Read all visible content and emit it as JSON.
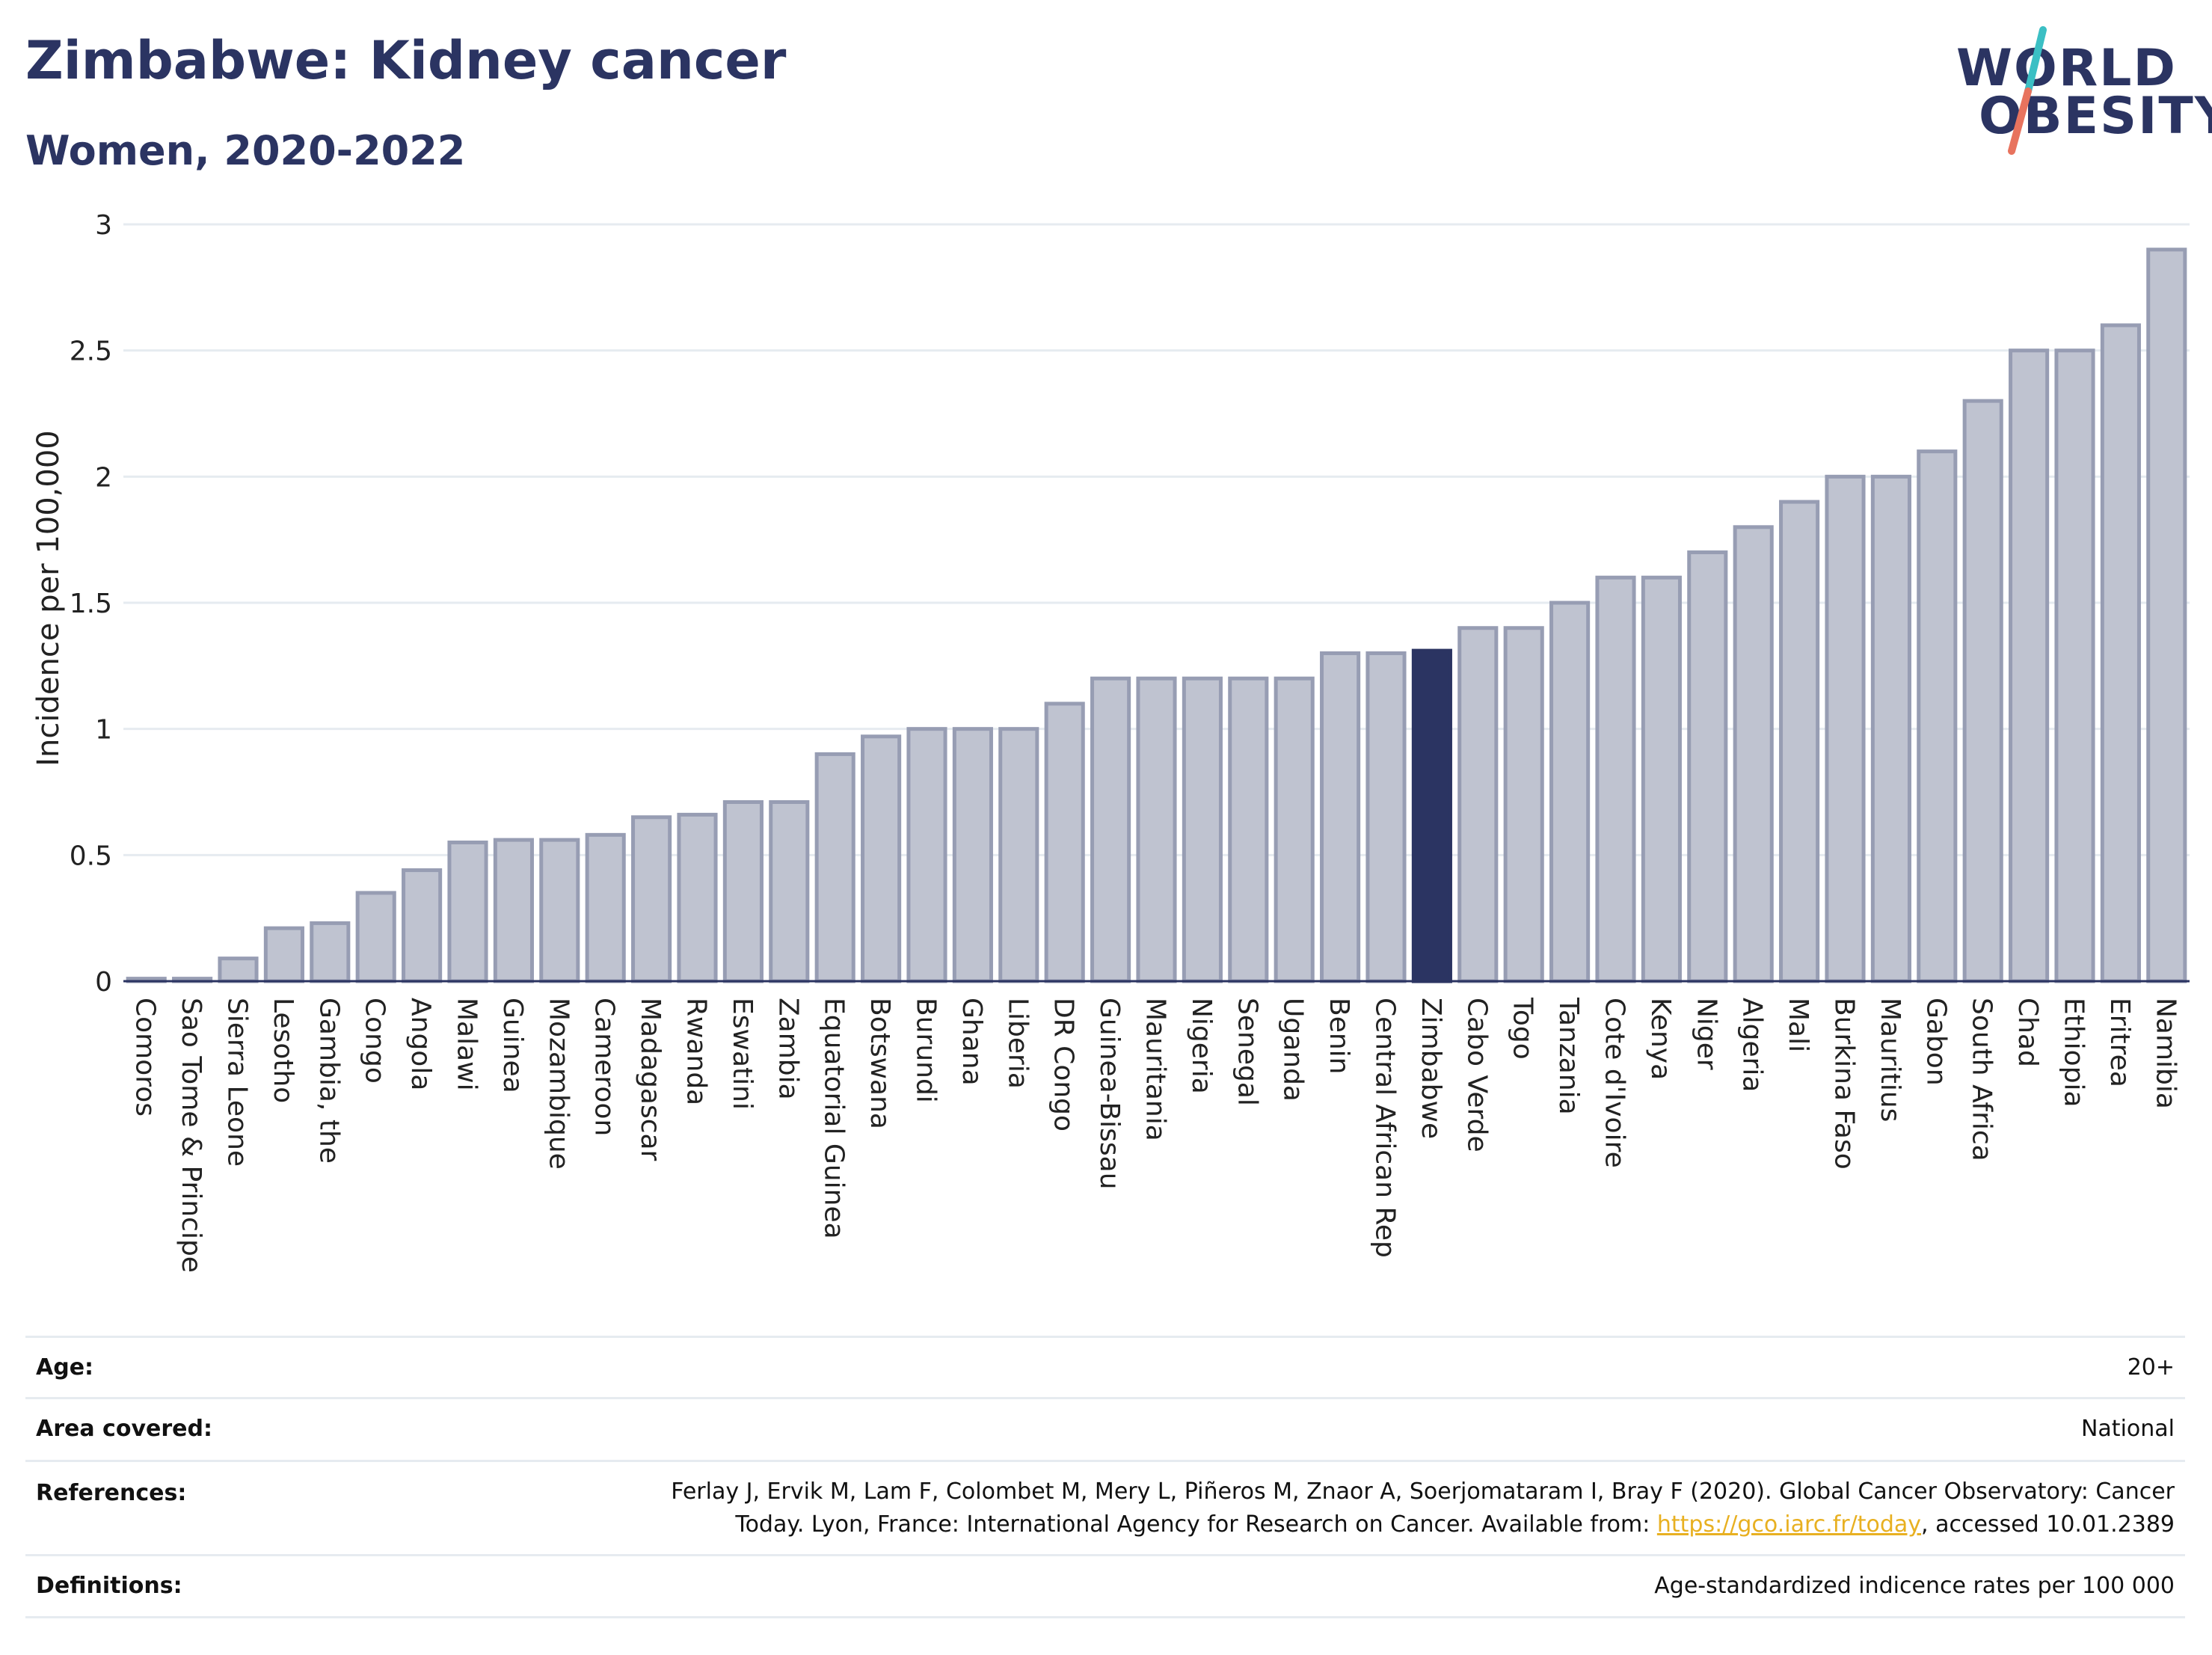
{
  "header": {
    "title": "Zimbabwe: Kidney cancer",
    "subtitle": "Women, 2020-2022"
  },
  "logo": {
    "line1": "WORLD",
    "line2": "OBESITY",
    "slash_colors": [
      "#3bbfc4",
      "#e8735e"
    ]
  },
  "colors": {
    "bar": "#bfc3d0",
    "bar_stroke": "#979db3",
    "highlight": "#2b3462",
    "grid": "#e6ebf0",
    "axis": "#2b3462",
    "link": "#e8b021"
  },
  "chart_data": {
    "type": "bar",
    "ylabel": "Incidence per 100,000",
    "ylim": [
      0,
      3
    ],
    "yticks": [
      0,
      0.5,
      1,
      1.5,
      2,
      2.5,
      3
    ],
    "ytick_labels": [
      "0",
      "0.5",
      "1",
      "1.5",
      "2",
      "2.5",
      "3"
    ],
    "grid": true,
    "highlight": "Zimbabwe",
    "categories": [
      "Comoros",
      "Sao Tome & Principe",
      "Sierra Leone",
      "Lesotho",
      "Gambia, the",
      "Congo",
      "Angola",
      "Malawi",
      "Guinea",
      "Mozambique",
      "Cameroon",
      "Madagascar",
      "Rwanda",
      "Eswatini",
      "Zambia",
      "Equatorial Guinea",
      "Botswana",
      "Burundi",
      "Ghana",
      "Liberia",
      "DR Congo",
      "Guinea-Bissau",
      "Mauritania",
      "Nigeria",
      "Senegal",
      "Uganda",
      "Benin",
      "Central African Rep",
      "Zimbabwe",
      "Cabo Verde",
      "Togo",
      "Tanzania",
      "Cote d'Ivoire",
      "Kenya",
      "Niger",
      "Algeria",
      "Mali",
      "Burkina Faso",
      "Mauritius",
      "Gabon",
      "South Africa",
      "Chad",
      "Ethiopia",
      "Eritrea",
      "Namibia"
    ],
    "values": [
      0.01,
      0.01,
      0.09,
      0.21,
      0.23,
      0.35,
      0.44,
      0.55,
      0.56,
      0.56,
      0.58,
      0.65,
      0.66,
      0.71,
      0.71,
      0.9,
      0.97,
      1.0,
      1.0,
      1.0,
      1.1,
      1.2,
      1.2,
      1.2,
      1.2,
      1.2,
      1.3,
      1.3,
      1.31,
      1.4,
      1.4,
      1.5,
      1.6,
      1.6,
      1.7,
      1.8,
      1.9,
      2.0,
      2.0,
      2.1,
      2.3,
      2.5,
      2.5,
      2.6,
      2.9
    ]
  },
  "meta": {
    "age_label": "Age:",
    "age_value": "20+",
    "area_label": "Area covered:",
    "area_value": "National",
    "references_label": "References:",
    "references_line1": "Ferlay J, Ervik M, Lam F, Colombet M, Mery L, Piñeros M, Znaor A, Soerjomataram I, Bray F (2020). Global Cancer Observatory: Cancer",
    "references_line2_pre": "Today. Lyon, France: International Agency for Research on Cancer. Available from: ",
    "references_link": "https://gco.iarc.fr/today",
    "references_line2_post": ", accessed 10.01.2389",
    "definitions_label": "Definitions:",
    "definitions_value": "Age-standardized indicence rates per 100 000"
  }
}
